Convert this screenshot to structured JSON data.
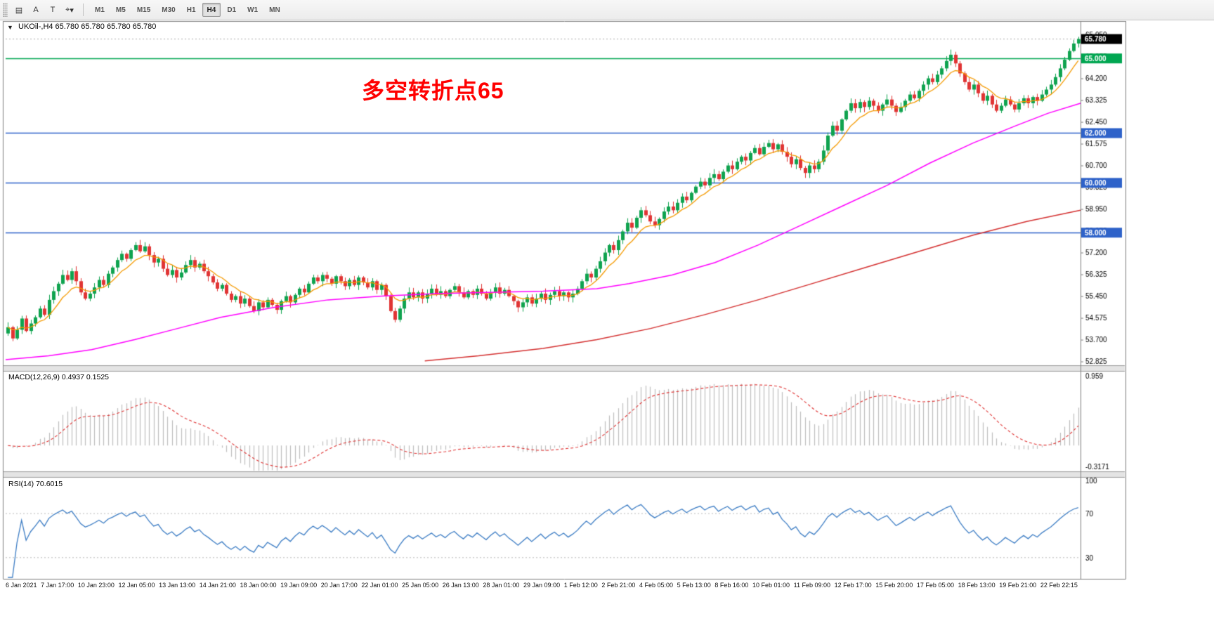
{
  "toolbar": {
    "icon_buttons": [
      {
        "name": "chart-window-icon",
        "glyph": "▤"
      },
      {
        "name": "annotation-a-button",
        "glyph": "A"
      },
      {
        "name": "text-label-button",
        "glyph": "T"
      },
      {
        "name": "crosshair-icon",
        "glyph": "⌖"
      },
      {
        "name": "dropdown-chevron-icon",
        "glyph": "▾"
      }
    ],
    "timeframes": [
      "M1",
      "M5",
      "M15",
      "M30",
      "H1",
      "H4",
      "D1",
      "W1",
      "MN"
    ],
    "active_timeframe": "H4"
  },
  "chart_header": {
    "expander_glyph": "▼",
    "symbol_title": "UKOil-,H4 65.780 65.780 65.780 65.780"
  },
  "annotation": {
    "text": "多空转折点65"
  },
  "colors": {
    "up": "#0fa34f",
    "down": "#e03434",
    "ma_fast": "#f59a00",
    "ma_mid": "#ff00ff",
    "ma_slow": "#d43030",
    "macd_hist": "#bdbdbd",
    "macd_signal": "#e03434",
    "rsi": "#3b7cc4",
    "level_blue": "#2e62c9",
    "level_green": "#00a651",
    "current_price_box": "#000000",
    "annotation": "#ff0000"
  },
  "chart_data": [
    {
      "type": "candlestick",
      "symbol": "UKOil-",
      "timeframe": "H4",
      "first_open": 53.95,
      "closes": [
        54.2,
        53.75,
        54.1,
        54.55,
        54.05,
        54.35,
        54.6,
        54.95,
        54.7,
        55.3,
        55.65,
        55.95,
        56.3,
        56.1,
        56.45,
        56.05,
        55.6,
        55.35,
        55.55,
        55.8,
        56.1,
        55.9,
        56.35,
        56.6,
        56.9,
        57.15,
        56.95,
        57.3,
        57.5,
        57.25,
        57.45,
        57.1,
        56.8,
        56.95,
        56.55,
        56.3,
        56.5,
        56.2,
        56.4,
        56.7,
        56.9,
        56.6,
        56.75,
        56.45,
        56.25,
        56.0,
        55.75,
        55.9,
        55.55,
        55.3,
        55.45,
        55.15,
        55.35,
        55.05,
        54.85,
        55.2,
        55.0,
        55.3,
        55.1,
        54.9,
        55.25,
        55.45,
        55.2,
        55.5,
        55.75,
        55.6,
        55.95,
        56.2,
        56.05,
        56.3,
        56.15,
        55.95,
        56.25,
        56.05,
        55.85,
        56.1,
        55.9,
        56.2,
        56.0,
        55.8,
        56.05,
        55.7,
        55.9,
        55.45,
        54.85,
        54.5,
        54.95,
        55.35,
        55.6,
        55.4,
        55.6,
        55.35,
        55.55,
        55.75,
        55.5,
        55.65,
        55.45,
        55.7,
        55.85,
        55.6,
        55.4,
        55.65,
        55.5,
        55.75,
        55.55,
        55.35,
        55.6,
        55.8,
        55.55,
        55.7,
        55.45,
        55.25,
        55.0,
        55.2,
        55.4,
        55.15,
        55.35,
        55.55,
        55.3,
        55.5,
        55.65,
        55.45,
        55.6,
        55.4,
        55.55,
        55.75,
        56.05,
        56.35,
        56.2,
        56.55,
        56.85,
        57.2,
        57.5,
        57.3,
        57.7,
        58.05,
        58.4,
        58.2,
        58.6,
        58.9,
        58.7,
        58.45,
        58.3,
        58.55,
        58.85,
        59.05,
        58.9,
        59.2,
        59.45,
        59.3,
        59.6,
        59.85,
        60.05,
        59.9,
        60.2,
        60.35,
        60.15,
        60.45,
        60.7,
        60.55,
        60.85,
        61.05,
        60.9,
        61.2,
        61.4,
        61.15,
        61.45,
        61.6,
        61.35,
        61.55,
        61.25,
        61.05,
        60.75,
        60.95,
        60.6,
        60.4,
        60.7,
        60.55,
        60.85,
        61.3,
        61.9,
        62.3,
        62.1,
        62.55,
        62.9,
        63.2,
        63.0,
        63.25,
        63.05,
        63.3,
        63.1,
        62.9,
        63.15,
        63.35,
        63.1,
        62.85,
        63.05,
        63.3,
        63.55,
        63.4,
        63.7,
        63.95,
        64.2,
        64.05,
        64.35,
        64.6,
        64.9,
        65.15,
        64.8,
        64.4,
        64.05,
        63.75,
        63.95,
        63.6,
        63.3,
        63.5,
        63.15,
        62.9,
        63.1,
        63.35,
        63.15,
        62.95,
        63.2,
        63.4,
        63.2,
        63.45,
        63.3,
        63.55,
        63.75,
        63.95,
        64.25,
        64.6,
        64.95,
        65.3,
        65.6,
        65.78
      ],
      "y_axis": {
        "ticks": [
          52.825,
          53.7,
          54.575,
          55.45,
          56.325,
          57.2,
          58.075,
          58.95,
          59.825,
          60.7,
          61.575,
          62.45,
          63.325,
          64.2,
          65.075,
          65.95
        ]
      },
      "levels": [
        {
          "value": 65.0,
          "label": "65.000",
          "color_key": "level_green"
        },
        {
          "value": 62.0,
          "label": "62.000",
          "color_key": "level_blue"
        },
        {
          "value": 60.0,
          "label": "60.000",
          "color_key": "level_blue"
        },
        {
          "value": 58.0,
          "label": "58.000",
          "color_key": "level_blue"
        }
      ],
      "current_price": {
        "value": 65.78,
        "label": "65.780"
      },
      "ma_lines": {
        "fast_ema_period": 8,
        "mid_points": [
          [
            0.0,
            52.9
          ],
          [
            0.04,
            53.05
          ],
          [
            0.08,
            53.3
          ],
          [
            0.12,
            53.7
          ],
          [
            0.16,
            54.15
          ],
          [
            0.2,
            54.6
          ],
          [
            0.25,
            55.0
          ],
          [
            0.3,
            55.3
          ],
          [
            0.35,
            55.45
          ],
          [
            0.4,
            55.55
          ],
          [
            0.45,
            55.6
          ],
          [
            0.5,
            55.65
          ],
          [
            0.55,
            55.75
          ],
          [
            0.58,
            55.95
          ],
          [
            0.62,
            56.3
          ],
          [
            0.66,
            56.8
          ],
          [
            0.7,
            57.5
          ],
          [
            0.74,
            58.3
          ],
          [
            0.78,
            59.1
          ],
          [
            0.82,
            59.9
          ],
          [
            0.86,
            60.8
          ],
          [
            0.9,
            61.6
          ],
          [
            0.94,
            62.3
          ],
          [
            0.97,
            62.8
          ],
          [
            1.0,
            63.2
          ]
        ],
        "slow_points": [
          [
            0.39,
            52.85
          ],
          [
            0.44,
            53.05
          ],
          [
            0.5,
            53.35
          ],
          [
            0.55,
            53.7
          ],
          [
            0.6,
            54.15
          ],
          [
            0.65,
            54.7
          ],
          [
            0.7,
            55.3
          ],
          [
            0.75,
            55.95
          ],
          [
            0.8,
            56.6
          ],
          [
            0.85,
            57.25
          ],
          [
            0.9,
            57.9
          ],
          [
            0.95,
            58.45
          ],
          [
            1.0,
            58.9
          ]
        ]
      },
      "time_labels": [
        "6 Jan 2021",
        "7 Jan 17:00",
        "10 Jan 23:00",
        "12 Jan 05:00",
        "13 Jan 13:00",
        "14 Jan 21:00",
        "18 Jan 00:00",
        "19 Jan 09:00",
        "20 Jan 17:00",
        "22 Jan 01:00",
        "25 Jan 05:00",
        "26 Jan 13:00",
        "28 Jan 01:00",
        "29 Jan 09:00",
        "1 Feb 12:00",
        "2 Feb 21:00",
        "4 Feb 05:00",
        "5 Feb 13:00",
        "8 Feb 16:00",
        "10 Feb 01:00",
        "11 Feb 09:00",
        "12 Feb 17:00",
        "15 Feb 20:00",
        "17 Feb 05:00",
        "18 Feb 13:00",
        "19 Feb 21:00",
        "22 Feb 22:15"
      ]
    },
    {
      "type": "macd",
      "label": "MACD(12,26,9) 0.4937 0.1525",
      "fast": 12,
      "slow": 26,
      "signal": 9,
      "value_main": 0.4937,
      "value_signal": 0.1525,
      "axis_max": 0.959,
      "axis_min": -0.3171,
      "axis_labels": [
        "0.959",
        "-0.3171"
      ]
    },
    {
      "type": "rsi",
      "label": "RSI(14) 70.6015",
      "period": 14,
      "value": 70.6015,
      "axis_labels": [
        "100",
        "70",
        "30"
      ],
      "overbought": 70,
      "oversold": 30
    }
  ]
}
